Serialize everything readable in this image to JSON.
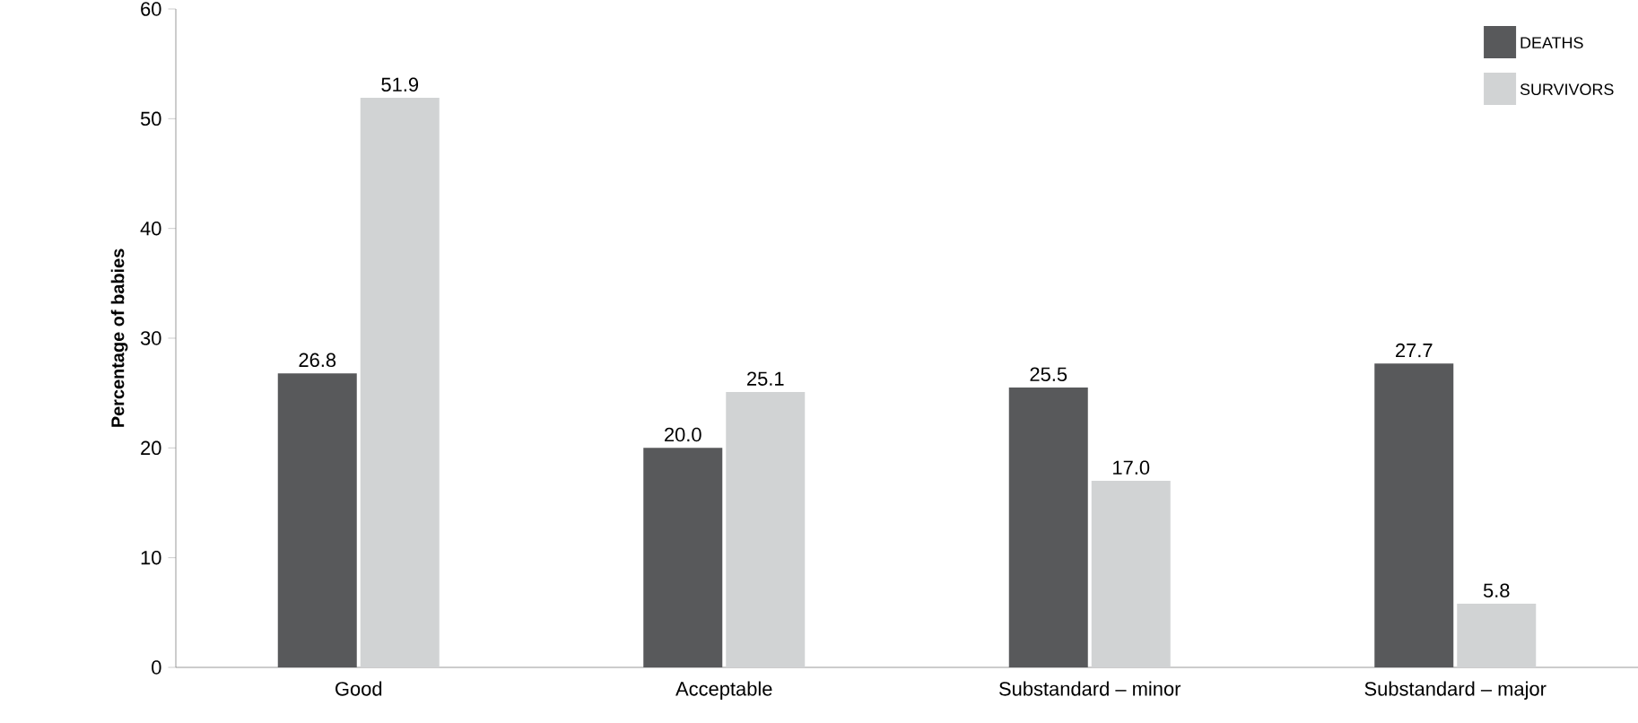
{
  "chart_data": {
    "type": "bar",
    "ylabel": "Percentage of babies",
    "categories": [
      "Good",
      "Acceptable",
      "Substandard – minor",
      "Substandard – major"
    ],
    "series": [
      {
        "name": "DEATHS",
        "color": "#58595b",
        "values": [
          26.8,
          20.0,
          25.5,
          27.7
        ],
        "value_labels": [
          "26.8",
          "20.0",
          "25.5",
          "27.7"
        ]
      },
      {
        "name": "SURVIVORS",
        "color": "#d1d3d4",
        "values": [
          51.9,
          25.1,
          17.0,
          5.8
        ],
        "value_labels": [
          "51.9",
          "25.1",
          "17.0",
          "5.8"
        ]
      }
    ],
    "ylim": [
      0,
      60
    ],
    "yticks": [
      0,
      10,
      20,
      30,
      40,
      50,
      60
    ],
    "legend": "top right",
    "grid": false
  }
}
